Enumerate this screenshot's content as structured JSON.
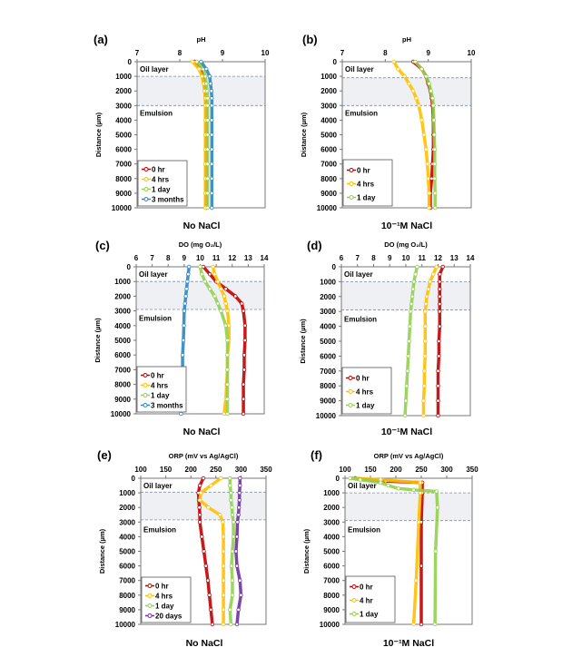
{
  "chart_data": [
    {
      "panel_label": "(a)",
      "type": "line",
      "title": "No NaCl",
      "xlabel": "pH",
      "ylabel": "Distance (µm)",
      "xlim": [
        7,
        10
      ],
      "xticks": [
        7,
        8,
        9,
        10
      ],
      "ylim": [
        0,
        10000
      ],
      "yticks": [
        0,
        1000,
        2000,
        3000,
        4000,
        5000,
        6000,
        7000,
        8000,
        9000,
        10000
      ],
      "y_reversed": true,
      "band": [
        1000,
        3000
      ],
      "annotations": [
        "Oil layer",
        "Emulsion"
      ],
      "legend": "bottom-left",
      "grid": false,
      "series": [
        {
          "name": "0 hr",
          "color": "#c00000",
          "depth": [
            0,
            500,
            1000,
            1500,
            2000,
            2500,
            3000,
            4000,
            5000,
            6000,
            7000,
            8000,
            9000,
            10000
          ],
          "value": [
            8.35,
            8.5,
            8.55,
            8.58,
            8.6,
            8.6,
            8.62,
            8.62,
            8.62,
            8.62,
            8.62,
            8.62,
            8.62,
            8.62
          ]
        },
        {
          "name": "4 hrs",
          "color": "#ffc000",
          "depth": [
            0,
            500,
            1000,
            1500,
            2000,
            2500,
            3000,
            4000,
            5000,
            6000,
            7000,
            8000,
            9000,
            10000
          ],
          "value": [
            8.3,
            8.45,
            8.52,
            8.56,
            8.58,
            8.6,
            8.6,
            8.6,
            8.6,
            8.6,
            8.6,
            8.6,
            8.6,
            8.6
          ]
        },
        {
          "name": "1 day",
          "color": "#92d050",
          "depth": [
            0,
            500,
            1000,
            1500,
            2000,
            2500,
            3000,
            4000,
            5000,
            6000,
            7000,
            8000,
            9000,
            10000
          ],
          "value": [
            8.4,
            8.55,
            8.6,
            8.62,
            8.64,
            8.65,
            8.65,
            8.65,
            8.65,
            8.65,
            8.65,
            8.65,
            8.65,
            8.65
          ]
        },
        {
          "name": "3 months",
          "color": "#2e86c1",
          "depth": [
            0,
            500,
            1000,
            1500,
            2000,
            2500,
            3000,
            4000,
            5000,
            6000,
            7000,
            8000,
            9000,
            10000
          ],
          "value": [
            8.5,
            8.62,
            8.7,
            8.72,
            8.74,
            8.75,
            8.75,
            8.75,
            8.75,
            8.75,
            8.75,
            8.75,
            8.75,
            8.75
          ]
        }
      ]
    },
    {
      "panel_label": "(b)",
      "type": "line",
      "title": "10⁻¹M NaCl",
      "xlabel": "pH",
      "ylabel": "Distance (µm)",
      "xlim": [
        7,
        10
      ],
      "xticks": [
        7,
        8,
        9,
        10
      ],
      "ylim": [
        0,
        10000
      ],
      "yticks": [
        0,
        1000,
        2000,
        3000,
        4000,
        5000,
        6000,
        7000,
        8000,
        9000,
        10000
      ],
      "y_reversed": true,
      "band": [
        1100,
        3000
      ],
      "annotations": [
        "Oil layer",
        "Emulsion"
      ],
      "legend": "bottom-left",
      "grid": false,
      "series": [
        {
          "name": "0 hr",
          "color": "#c00000",
          "depth": [
            0,
            500,
            1000,
            1500,
            2000,
            2500,
            3000,
            4000,
            5000,
            6000,
            7000,
            8000,
            9000,
            10000
          ],
          "value": [
            8.65,
            8.85,
            8.95,
            9.0,
            9.05,
            9.08,
            9.1,
            9.12,
            9.12,
            9.12,
            9.1,
            9.08,
            9.05,
            9.05
          ]
        },
        {
          "name": "4 hrs",
          "color": "#ffc000",
          "depth": [
            0,
            500,
            1000,
            1500,
            2000,
            2500,
            3000,
            4000,
            5000,
            6000,
            7000,
            8000,
            9000,
            10000
          ],
          "value": [
            8.2,
            8.3,
            8.45,
            8.55,
            8.65,
            8.72,
            8.78,
            8.85,
            8.9,
            8.95,
            8.98,
            9.0,
            9.02,
            9.02
          ]
        },
        {
          "name": "1 day",
          "color": "#92d050",
          "depth": [
            0,
            500,
            1000,
            1500,
            2000,
            2500,
            3000,
            4000,
            5000,
            6000,
            7000,
            8000,
            9000,
            10000
          ],
          "value": [
            8.7,
            8.85,
            8.95,
            9.02,
            9.06,
            9.1,
            9.12,
            9.13,
            9.14,
            9.15,
            9.15,
            9.15,
            9.16,
            9.16
          ]
        }
      ]
    },
    {
      "panel_label": "(c)",
      "type": "line",
      "title": "No NaCl",
      "xlabel": "DO (mg O₂/L)",
      "ylabel": "Distance (µm)",
      "xlim": [
        6,
        14
      ],
      "xticks": [
        6,
        7,
        8,
        9,
        10,
        11,
        12,
        13,
        14
      ],
      "ylim": [
        0,
        10000
      ],
      "yticks": [
        0,
        1000,
        2000,
        3000,
        4000,
        5000,
        6000,
        7000,
        8000,
        9000,
        10000
      ],
      "y_reversed": true,
      "band": [
        1000,
        2900
      ],
      "annotations": [
        "Oil layer",
        "Emulsion"
      ],
      "legend": "bottom-left",
      "grid": false,
      "series": [
        {
          "name": "0 hr",
          "color": "#c00000",
          "depth": [
            0,
            500,
            1000,
            1500,
            2000,
            2500,
            3000,
            4000,
            5000,
            6000,
            7000,
            8000,
            9000,
            10000
          ],
          "value": [
            10.2,
            10.6,
            11.0,
            11.6,
            12.2,
            12.6,
            12.7,
            12.8,
            12.8,
            12.75,
            12.75,
            12.7,
            12.7,
            12.7
          ]
        },
        {
          "name": "4 hrs",
          "color": "#ffc000",
          "depth": [
            0,
            500,
            1000,
            1500,
            2000,
            2500,
            3000,
            4000,
            5000,
            6000,
            7000,
            8000,
            9000,
            10000
          ],
          "value": [
            10.8,
            10.9,
            11.1,
            11.3,
            11.5,
            11.6,
            11.7,
            11.8,
            11.8,
            11.7,
            11.7,
            11.65,
            11.6,
            11.5
          ]
        },
        {
          "name": "1 day",
          "color": "#92d050",
          "depth": [
            0,
            500,
            1000,
            1500,
            2000,
            2500,
            3000,
            4000,
            5000,
            6000,
            7000,
            8000,
            9000,
            10000
          ],
          "value": [
            10.0,
            10.1,
            10.3,
            10.6,
            10.9,
            11.1,
            11.3,
            11.6,
            11.7,
            11.7,
            11.7,
            11.7,
            11.7,
            11.7
          ]
        },
        {
          "name": "3 months",
          "color": "#2e86c1",
          "depth": [
            0,
            500,
            1000,
            1500,
            2000,
            2500,
            3000,
            4000,
            5000,
            6000,
            7000,
            8000,
            9000,
            10000
          ],
          "value": [
            9.3,
            9.25,
            9.2,
            9.15,
            9.1,
            9.05,
            9.0,
            8.98,
            8.95,
            8.9,
            8.9,
            8.85,
            8.82,
            8.8
          ]
        }
      ]
    },
    {
      "panel_label": "(d)",
      "type": "line",
      "title": "10⁻¹M NaCl",
      "xlabel": "DO (mg O₂/L)",
      "ylabel": "Distance (µm)",
      "xlim": [
        6,
        14
      ],
      "xticks": [
        6,
        7,
        8,
        9,
        10,
        11,
        12,
        13,
        14
      ],
      "ylim": [
        0,
        10000
      ],
      "yticks": [
        0,
        1000,
        2000,
        3000,
        4000,
        5000,
        6000,
        7000,
        8000,
        9000,
        10000
      ],
      "y_reversed": true,
      "band": [
        1000,
        2900
      ],
      "annotations": [
        "Oil layer",
        "Emulsion"
      ],
      "legend": "bottom-left",
      "grid": false,
      "series": [
        {
          "name": "0 hr",
          "color": "#c00000",
          "depth": [
            0,
            500,
            1000,
            1500,
            2000,
            2500,
            3000,
            4000,
            5000,
            6000,
            7000,
            8000,
            9000,
            10000
          ],
          "value": [
            12.3,
            12.1,
            12.1,
            12.1,
            12.1,
            12.1,
            12.1,
            12.1,
            12.05,
            12.05,
            12.0,
            12.0,
            12.0,
            12.0
          ]
        },
        {
          "name": "4 hrs",
          "color": "#ffc000",
          "depth": [
            0,
            500,
            1000,
            1500,
            2000,
            2500,
            3000,
            4000,
            5000,
            6000,
            7000,
            8000,
            9000,
            10000
          ],
          "value": [
            11.9,
            11.7,
            11.5,
            11.4,
            11.3,
            11.25,
            11.2,
            11.2,
            11.2,
            11.2,
            11.15,
            11.15,
            11.1,
            11.1
          ]
        },
        {
          "name": "1 day",
          "color": "#92d050",
          "depth": [
            0,
            500,
            1000,
            1500,
            2000,
            2500,
            3000,
            4000,
            5000,
            6000,
            7000,
            8000,
            9000,
            10000
          ],
          "value": [
            10.7,
            10.6,
            10.5,
            10.45,
            10.4,
            10.35,
            10.3,
            10.25,
            10.2,
            10.15,
            10.1,
            10.05,
            10.0,
            9.95
          ]
        }
      ]
    },
    {
      "panel_label": "(e)",
      "type": "line",
      "title": "No NaCl",
      "xlabel": "ORP (mV vs Ag/AgCl)",
      "ylabel": "Distance (µm)",
      "xlim": [
        100,
        350
      ],
      "xticks": [
        100,
        150,
        200,
        250,
        300,
        350
      ],
      "ylim": [
        0,
        10000
      ],
      "yticks": [
        0,
        1000,
        2000,
        3000,
        4000,
        5000,
        6000,
        7000,
        8000,
        9000,
        10000
      ],
      "y_reversed": true,
      "band": [
        950,
        2850
      ],
      "annotations": [
        "Oil layer",
        "Emulsion"
      ],
      "legend": "bottom-left",
      "grid": false,
      "series": [
        {
          "name": "0 hr",
          "color": "#c00000",
          "depth": [
            0,
            500,
            1000,
            1500,
            2000,
            2500,
            3000,
            4000,
            5000,
            6000,
            7000,
            8000,
            9000,
            10000
          ],
          "value": [
            225,
            218,
            215,
            216,
            217,
            218,
            218,
            222,
            226,
            230,
            234,
            237,
            240,
            243
          ]
        },
        {
          "name": "4 hrs",
          "color": "#ffc000",
          "depth": [
            0,
            500,
            1000,
            1500,
            2000,
            2500,
            3000,
            4000,
            5000,
            6000,
            7000,
            8000,
            9000,
            10000
          ],
          "value": [
            260,
            240,
            220,
            218,
            235,
            258,
            264,
            265,
            265,
            265,
            265,
            265,
            265,
            265
          ]
        },
        {
          "name": "1 day",
          "color": "#92d050",
          "depth": [
            0,
            500,
            1000,
            1500,
            2000,
            2500,
            3000,
            4000,
            5000,
            6000,
            7000,
            8000,
            9000,
            10000
          ],
          "value": [
            278,
            278,
            280,
            280,
            282,
            283,
            285,
            285,
            283,
            281,
            283,
            283,
            278,
            280
          ]
        },
        {
          "name": "20 days",
          "color": "#7030a0",
          "depth": [
            0,
            500,
            1000,
            1500,
            2000,
            2500,
            3000,
            4000,
            5000,
            6000,
            7000,
            8000,
            9000,
            10000
          ],
          "value": [
            298,
            298,
            297,
            297,
            296,
            295,
            293,
            292,
            290,
            292,
            298,
            300,
            295,
            292
          ]
        }
      ]
    },
    {
      "panel_label": "(f)",
      "type": "line",
      "title": "10⁻¹M NaCl",
      "xlabel": "ORP (mV vs Ag/AgCl)",
      "ylabel": "Distance (µm)",
      "xlim": [
        100,
        350
      ],
      "xticks": [
        100,
        150,
        200,
        250,
        300,
        350
      ],
      "ylim": [
        0,
        10000
      ],
      "yticks": [
        0,
        1000,
        2000,
        3000,
        4000,
        5000,
        6000,
        7000,
        8000,
        9000,
        10000
      ],
      "y_reversed": true,
      "band": [
        1000,
        2900
      ],
      "annotations": [
        "Oil layer",
        "Emulsion"
      ],
      "legend": "bottom-left",
      "grid": false,
      "series": [
        {
          "name": "0 hr",
          "color": "#c00000",
          "depth": [
            0,
            200,
            300,
            1000,
            3000,
            6000,
            10000
          ],
          "value": [
            120,
            180,
            252,
            252,
            250,
            250,
            250
          ]
        },
        {
          "name": "4 hr",
          "color": "#ffc000",
          "depth": [
            0,
            100,
            300,
            1000,
            3000,
            7000,
            10000
          ],
          "value": [
            115,
            170,
            248,
            248,
            245,
            240,
            235
          ]
        },
        {
          "name": "1 day",
          "color": "#92d050",
          "depth": [
            0,
            100,
            300,
            500,
            700,
            800,
            900,
            2000,
            5000,
            10000
          ],
          "value": [
            110,
            130,
            170,
            185,
            205,
            235,
            280,
            282,
            278,
            277
          ]
        }
      ]
    }
  ]
}
